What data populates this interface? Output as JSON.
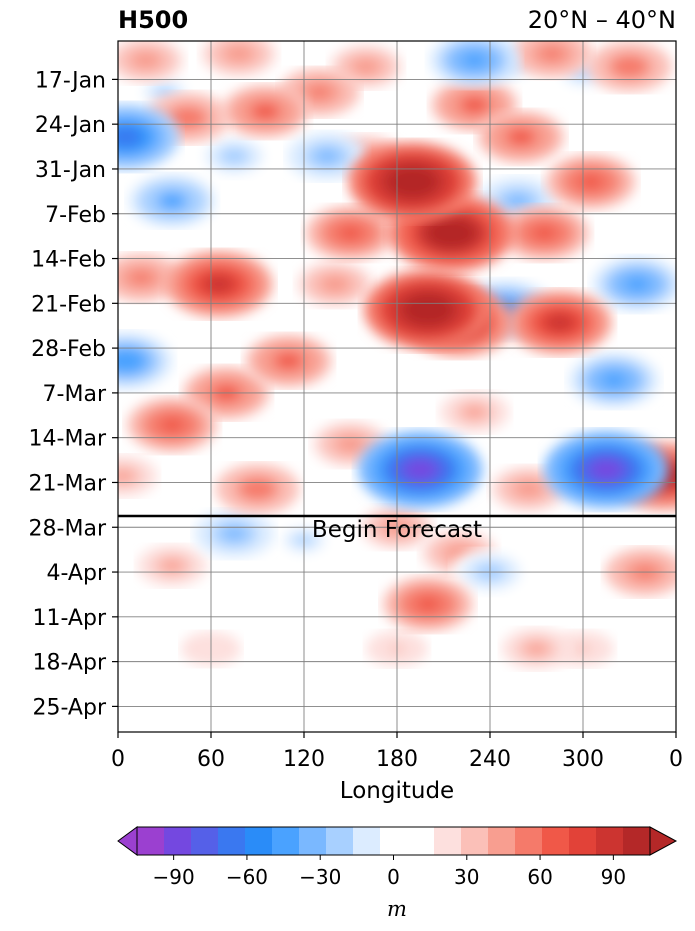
{
  "chart_data": {
    "type": "heatmap",
    "title": "H500",
    "subtitle": "20°N – 40°N",
    "xlabel": "Longitude",
    "x_ticks": [
      "0",
      "60",
      "120",
      "180",
      "240",
      "300",
      "0"
    ],
    "y_ticks": [
      "17-Jan",
      "24-Jan",
      "31-Jan",
      "7-Feb",
      "14-Feb",
      "21-Feb",
      "28-Feb",
      "7-Mar",
      "14-Mar",
      "21-Mar",
      "28-Mar",
      "4-Apr",
      "11-Apr",
      "18-Apr",
      "25-Apr"
    ],
    "xlim": [
      0,
      360
    ],
    "ylim_days_from_start": [
      0,
      108
    ],
    "grid": true,
    "annotation": "Begin Forecast",
    "colorbar": {
      "label": "m",
      "ticks": [
        "−90",
        "−60",
        "−30",
        "0",
        "30",
        "60",
        "90"
      ],
      "range": [
        -105,
        105
      ],
      "step": 10,
      "colors": [
        "#9b40d0",
        "#7448e0",
        "#5560e8",
        "#3a78f0",
        "#2a8cf8",
        "#4aa2ff",
        "#7ab8ff",
        "#a8d0ff",
        "#dcecff",
        "#ffffff",
        "#ffffff",
        "#fde0de",
        "#fbc0b8",
        "#f89e90",
        "#f57a6a",
        "#f05848",
        "#e24238",
        "#cc3430",
        "#b42828"
      ]
    },
    "anomaly_features": [
      {
        "lon": 18,
        "day": 3,
        "value": 40
      },
      {
        "lon": 78,
        "day": 2,
        "value": 40
      },
      {
        "lon": 160,
        "day": 4,
        "value": 35
      },
      {
        "lon": 280,
        "day": 2,
        "value": 45
      },
      {
        "lon": 330,
        "day": 4,
        "value": 50
      },
      {
        "lon": 230,
        "day": 3,
        "value": -60
      },
      {
        "lon": 250,
        "day": 3,
        "value": -35
      },
      {
        "lon": 300,
        "day": 5,
        "value": -30
      },
      {
        "lon": 30,
        "day": 8,
        "value": -30
      },
      {
        "lon": 5,
        "day": 15,
        "value": -85
      },
      {
        "lon": 45,
        "day": 12,
        "value": 50
      },
      {
        "lon": 95,
        "day": 11,
        "value": 55
      },
      {
        "lon": 130,
        "day": 8,
        "value": 45
      },
      {
        "lon": 75,
        "day": 18,
        "value": -35
      },
      {
        "lon": 135,
        "day": 18,
        "value": -45
      },
      {
        "lon": 160,
        "day": 18,
        "value": 35
      },
      {
        "lon": 190,
        "day": 22,
        "value": 115
      },
      {
        "lon": 215,
        "day": 30,
        "value": 110
      },
      {
        "lon": 200,
        "day": 42,
        "value": 115
      },
      {
        "lon": 220,
        "day": 44,
        "value": 90
      },
      {
        "lon": 150,
        "day": 30,
        "value": 60
      },
      {
        "lon": 230,
        "day": 10,
        "value": 55
      },
      {
        "lon": 260,
        "day": 15,
        "value": 55
      },
      {
        "lon": 275,
        "day": 30,
        "value": 60
      },
      {
        "lon": 285,
        "day": 44,
        "value": 80
      },
      {
        "lon": 305,
        "day": 22,
        "value": 60
      },
      {
        "lon": 250,
        "day": 42,
        "value": -70
      },
      {
        "lon": 258,
        "day": 25,
        "value": -45
      },
      {
        "lon": 335,
        "day": 38,
        "value": -60
      },
      {
        "lon": 35,
        "day": 25,
        "value": -55
      },
      {
        "lon": 5,
        "day": 50,
        "value": -65
      },
      {
        "lon": 15,
        "day": 37,
        "value": 45
      },
      {
        "lon": 65,
        "day": 38,
        "value": 85
      },
      {
        "lon": 35,
        "day": 60,
        "value": 60
      },
      {
        "lon": 70,
        "day": 55,
        "value": 55
      },
      {
        "lon": 110,
        "day": 50,
        "value": 55
      },
      {
        "lon": 140,
        "day": 38,
        "value": 40
      },
      {
        "lon": 90,
        "day": 70,
        "value": 50
      },
      {
        "lon": 150,
        "day": 63,
        "value": 40
      },
      {
        "lon": 195,
        "day": 67,
        "value": -110
      },
      {
        "lon": 315,
        "day": 67,
        "value": -110
      },
      {
        "lon": 320,
        "day": 53,
        "value": -60
      },
      {
        "lon": 352,
        "day": 68,
        "value": 90
      },
      {
        "lon": 3,
        "day": 68,
        "value": 30
      },
      {
        "lon": 75,
        "day": 77,
        "value": -45
      },
      {
        "lon": 120,
        "day": 78,
        "value": -30
      },
      {
        "lon": 265,
        "day": 70,
        "value": 40
      },
      {
        "lon": 230,
        "day": 58,
        "value": 30
      },
      {
        "lon": 180,
        "day": 76,
        "value": 35
      },
      {
        "lon": 220,
        "day": 80,
        "value": 40
      },
      {
        "lon": 240,
        "day": 83,
        "value": -40
      },
      {
        "lon": 200,
        "day": 88,
        "value": 60
      },
      {
        "lon": 35,
        "day": 82,
        "value": 30
      },
      {
        "lon": 340,
        "day": 83,
        "value": 45
      },
      {
        "lon": 270,
        "day": 95,
        "value": 30
      },
      {
        "lon": 180,
        "day": 95,
        "value": 18
      },
      {
        "lon": 60,
        "day": 95,
        "value": 15
      },
      {
        "lon": 300,
        "day": 95,
        "value": 18
      },
      {
        "lon": 70,
        "day": 88,
        "value": -12
      },
      {
        "lon": 5,
        "day": 106,
        "value": -15
      },
      {
        "lon": 350,
        "day": 106,
        "value": -15
      }
    ]
  }
}
